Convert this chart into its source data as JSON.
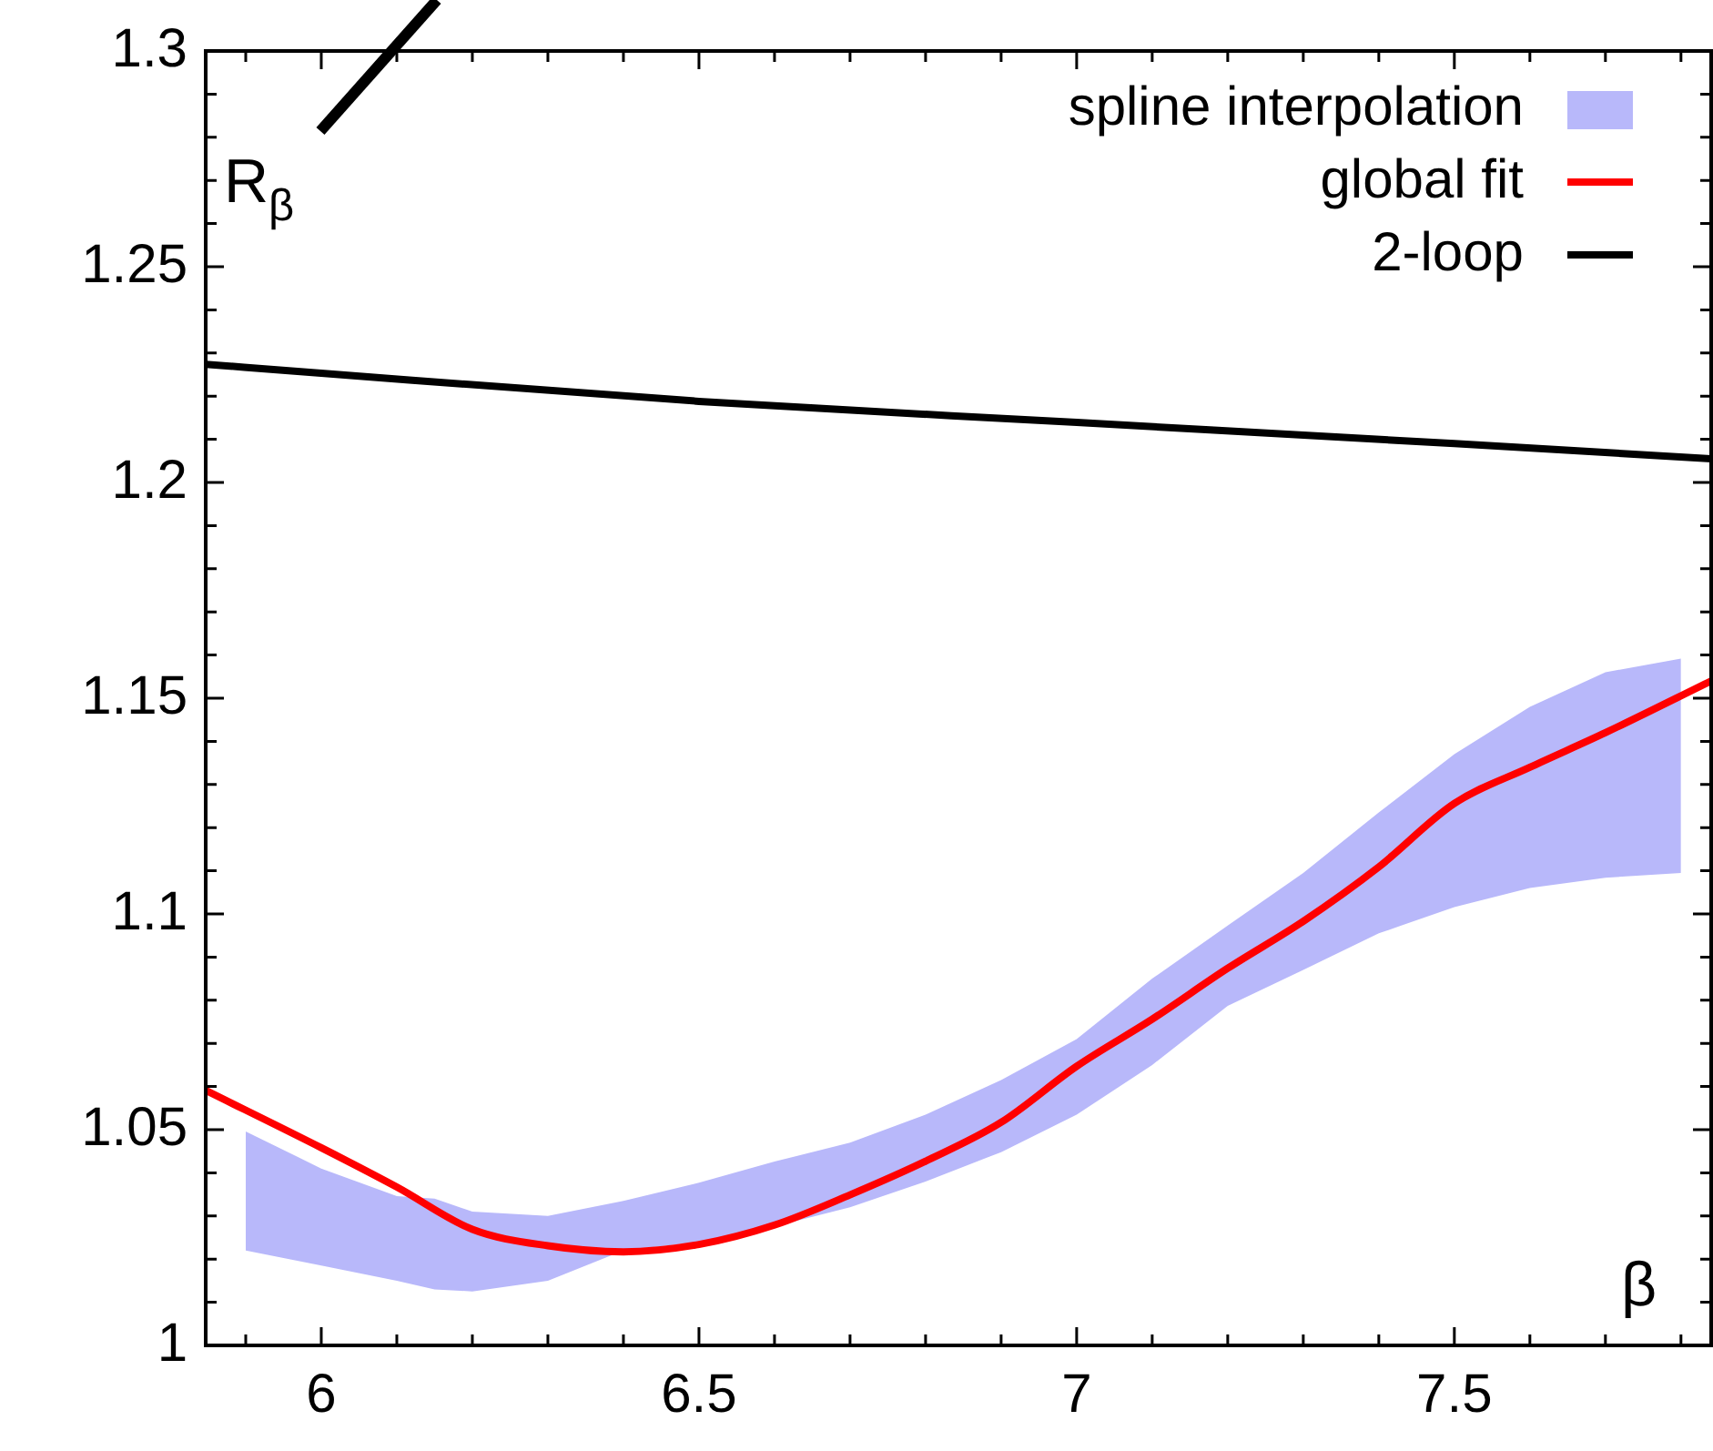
{
  "chart_data": {
    "type": "line",
    "xlabel": "β",
    "ylabel": "R$_{β}$",
    "xlim": [
      5.847,
      7.84
    ],
    "ylim": [
      1,
      1.3
    ],
    "xticks": [
      {
        "value": 5.9,
        "label": null
      },
      6,
      {
        "value": 6.1,
        "label": null
      },
      {
        "value": 6.2,
        "label": null
      },
      {
        "value": 6.3,
        "label": null
      },
      {
        "value": 6.4,
        "label": null
      },
      6.5,
      {
        "value": 6.6,
        "label": null
      },
      {
        "value": 6.7,
        "label": null
      },
      {
        "value": 6.8,
        "label": null
      },
      {
        "value": 6.9,
        "label": null
      },
      7,
      {
        "value": 7.1,
        "label": null
      },
      {
        "value": 7.2,
        "label": null
      },
      {
        "value": 7.3,
        "label": null
      },
      {
        "value": 7.4,
        "label": null
      },
      7.5,
      {
        "value": 7.6,
        "label": null
      },
      {
        "value": 7.7,
        "label": null
      },
      {
        "value": 7.8,
        "label": null
      }
    ],
    "yticks": [
      1,
      {
        "value": 1.01,
        "label": null
      },
      {
        "value": 1.02,
        "label": null
      },
      {
        "value": 1.03,
        "label": null
      },
      {
        "value": 1.04,
        "label": null
      },
      1.05,
      {
        "value": 1.06,
        "label": null
      },
      {
        "value": 1.07,
        "label": null
      },
      {
        "value": 1.08,
        "label": null
      },
      {
        "value": 1.09,
        "label": null
      },
      1.1,
      {
        "value": 1.11,
        "label": null
      },
      {
        "value": 1.12,
        "label": null
      },
      {
        "value": 1.13,
        "label": null
      },
      {
        "value": 1.14,
        "label": null
      },
      1.15,
      {
        "value": 1.16,
        "label": null
      },
      {
        "value": 1.17,
        "label": null
      },
      {
        "value": 1.18,
        "label": null
      },
      {
        "value": 1.19,
        "label": null
      },
      1.2,
      {
        "value": 1.21,
        "label": null
      },
      {
        "value": 1.22,
        "label": null
      },
      {
        "value": 1.23,
        "label": null
      },
      {
        "value": 1.24,
        "label": null
      },
      1.25,
      {
        "value": 1.26,
        "label": null
      },
      {
        "value": 1.27,
        "label": null
      },
      {
        "value": 1.28,
        "label": null
      },
      {
        "value": 1.29,
        "label": null
      },
      1.3
    ],
    "legend": "top right",
    "series": [
      {
        "name": "spline interpolation",
        "type": "area",
        "color": "#b8b8fa",
        "x": [
          5.9,
          6.0,
          6.1,
          6.15,
          6.2,
          6.3,
          6.4,
          6.5,
          6.6,
          6.7,
          6.8,
          6.9,
          7.0,
          7.1,
          7.2,
          7.3,
          7.4,
          7.5,
          7.6,
          7.7,
          7.8
        ],
        "values": [
          null,
          null,
          null,
          null,
          null,
          null,
          null,
          null,
          null,
          null,
          null,
          null,
          null,
          null,
          null,
          null,
          null,
          null,
          null,
          null,
          null
        ],
        "lower": [
          1.022,
          1.0185,
          1.015,
          1.013,
          1.0125,
          1.015,
          1.022,
          1.024,
          1.0276,
          1.032,
          1.038,
          1.0448,
          1.0535,
          1.065,
          1.0787,
          1.087,
          1.0955,
          1.1016,
          1.106,
          1.1084,
          1.1095
        ],
        "upper": [
          1.0496,
          1.041,
          1.0346,
          1.034,
          1.031,
          1.03,
          1.0335,
          1.0377,
          1.0426,
          1.047,
          1.0535,
          1.0615,
          1.071,
          1.085,
          1.0973,
          1.1095,
          1.1235,
          1.137,
          1.148,
          1.156,
          1.1592
        ]
      },
      {
        "name": "global fit",
        "color": "#ff0000",
        "x": [
          5.847,
          6.0,
          6.1,
          6.2,
          6.3,
          6.4,
          6.5,
          6.6,
          6.7,
          6.8,
          6.9,
          7.0,
          7.1,
          7.2,
          7.3,
          7.4,
          7.5,
          7.6,
          7.7,
          7.84
        ],
        "values": [
          1.0591,
          1.0458,
          1.0367,
          1.0269,
          1.0231,
          1.0217,
          1.0234,
          1.0279,
          1.0349,
          1.0427,
          1.0517,
          1.0647,
          1.0756,
          1.0874,
          1.0983,
          1.1109,
          1.1256,
          1.134,
          1.142,
          1.154
        ]
      },
      {
        "name": "2-loop",
        "color": "#000000",
        "x": [
          5.847,
          6.0,
          6.5,
          7.0,
          7.5,
          7.84
        ],
        "values": [
          1.2274,
          1.2253,
          1.2188,
          1.2139,
          1.209,
          1.2055
        ]
      }
    ]
  }
}
